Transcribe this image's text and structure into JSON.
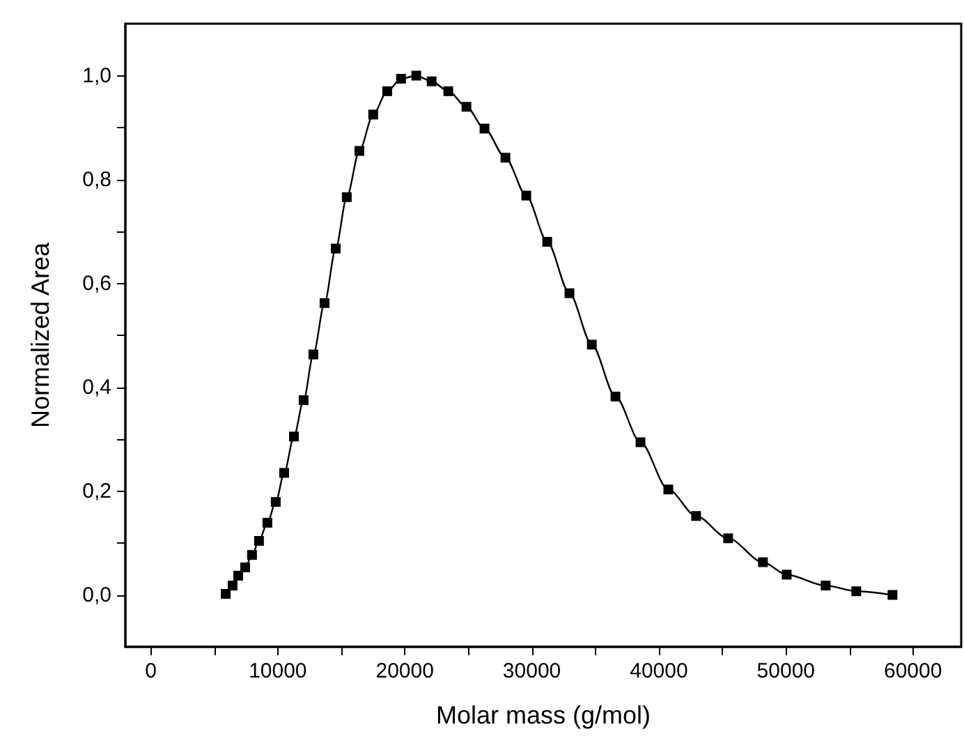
{
  "chart_data": {
    "type": "line",
    "xlabel": "Molar mass (g/mol)",
    "ylabel": "Normalized Area",
    "marker": "square",
    "line_style": "solid",
    "xlim": [
      -2000,
      63800
    ],
    "ylim": [
      -0.1,
      1.1
    ],
    "xticks": [
      0,
      {
        "value": 5000,
        "label": null
      },
      10000,
      {
        "value": 15000,
        "label": null
      },
      20000,
      {
        "value": 25000,
        "label": null
      },
      30000,
      {
        "value": 35000,
        "label": null
      },
      40000,
      {
        "value": 45000,
        "label": null
      },
      50000,
      {
        "value": 55000,
        "label": null
      },
      60000
    ],
    "yticks": [
      {
        "value": 0,
        "label": "0,0"
      },
      {
        "value": 0.1,
        "label": null
      },
      {
        "value": 0.2,
        "label": "0,2"
      },
      {
        "value": 0.3,
        "label": null
      },
      {
        "value": 0.4,
        "label": "0,4"
      },
      {
        "value": 0.5,
        "label": null
      },
      {
        "value": 0.6,
        "label": "0,6"
      },
      {
        "value": 0.7,
        "label": null
      },
      {
        "value": 0.8,
        "label": "0,8"
      },
      {
        "value": 0.9,
        "label": null
      },
      {
        "value": 1,
        "label": "1,0"
      }
    ],
    "series": [
      {
        "color": "#000000",
        "x": [
          5900,
          6440,
          6880,
          7430,
          7970,
          8520,
          9180,
          9840,
          10500,
          11270,
          12030,
          12800,
          13680,
          14560,
          15430,
          16420,
          17510,
          18610,
          19700,
          20900,
          22110,
          23420,
          24850,
          26270,
          27920,
          29560,
          31210,
          32960,
          34720,
          36580,
          38550,
          40740,
          42930,
          45450,
          48190,
          50060,
          53130,
          55540,
          58390
        ],
        "values": [
          0.002,
          0.018,
          0.037,
          0.053,
          0.077,
          0.104,
          0.139,
          0.179,
          0.235,
          0.305,
          0.375,
          0.463,
          0.562,
          0.667,
          0.766,
          0.855,
          0.925,
          0.97,
          0.994,
          1.0,
          0.989,
          0.97,
          0.94,
          0.898,
          0.842,
          0.769,
          0.68,
          0.581,
          0.482,
          0.382,
          0.294,
          0.203,
          0.152,
          0.109,
          0.063,
          0.039,
          0.018,
          0.007,
          0.0
        ]
      }
    ]
  }
}
